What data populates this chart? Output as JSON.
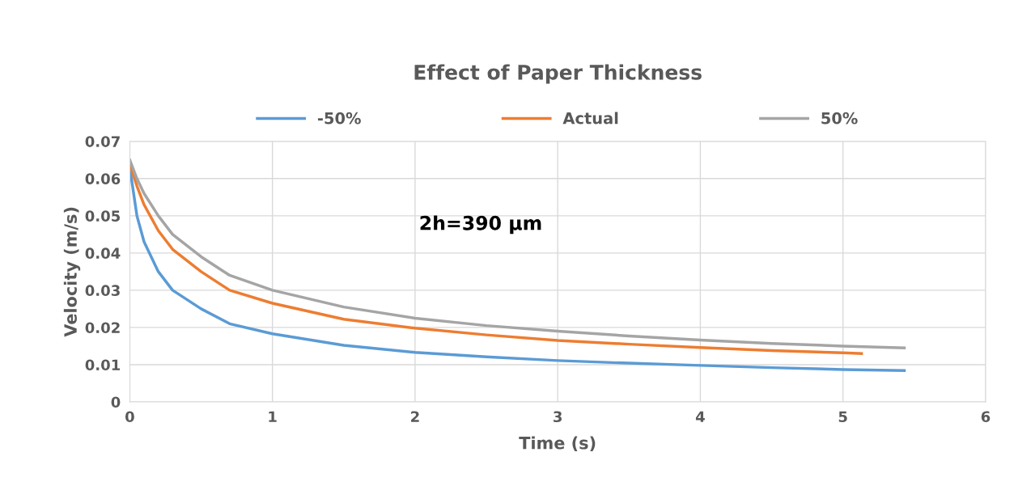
{
  "chart_data": {
    "type": "line",
    "title": "Effect of Paper Thickness",
    "xlabel": "Time (s)",
    "ylabel": "Velocity (m/s)",
    "annotations": [
      "2h=390 µm"
    ],
    "xlim": [
      0,
      6
    ],
    "xticks": [
      0,
      1,
      2,
      3,
      4,
      5,
      6
    ],
    "ylim": [
      0,
      0.07
    ],
    "yticks": [
      0,
      0.01,
      0.02,
      0.03,
      0.04,
      0.05,
      0.06,
      0.07
    ],
    "grid": true,
    "legend": "top",
    "marker": "none",
    "line_style": "solid",
    "series": [
      {
        "name": "-50%",
        "color": "#5b9bd5",
        "x": [
          0,
          0.05,
          0.1,
          0.2,
          0.3,
          0.5,
          0.7,
          1,
          1.5,
          2,
          2.5,
          3,
          3.5,
          4,
          4.5,
          5,
          5.43
        ],
        "values": [
          0.063,
          0.05,
          0.043,
          0.035,
          0.03,
          0.025,
          0.021,
          0.0183,
          0.0152,
          0.0133,
          0.0121,
          0.0111,
          0.0104,
          0.0098,
          0.0092,
          0.0087,
          0.0084
        ]
      },
      {
        "name": "Actual",
        "color": "#ed7d31",
        "x": [
          0,
          0.05,
          0.1,
          0.2,
          0.3,
          0.5,
          0.7,
          1,
          1.5,
          2,
          2.5,
          3,
          3.5,
          4,
          4.5,
          5,
          5.13
        ],
        "values": [
          0.064,
          0.058,
          0.053,
          0.046,
          0.041,
          0.035,
          0.03,
          0.0265,
          0.0222,
          0.0198,
          0.018,
          0.0165,
          0.0155,
          0.0146,
          0.0138,
          0.0132,
          0.013
        ]
      },
      {
        "name": "50%",
        "color": "#a5a5a5",
        "x": [
          0,
          0.05,
          0.1,
          0.2,
          0.3,
          0.5,
          0.7,
          1,
          1.5,
          2,
          2.5,
          3,
          3.5,
          4,
          4.5,
          5,
          5.43
        ],
        "values": [
          0.065,
          0.06,
          0.056,
          0.05,
          0.045,
          0.039,
          0.034,
          0.03,
          0.0255,
          0.0225,
          0.0205,
          0.019,
          0.0177,
          0.0166,
          0.0157,
          0.015,
          0.0145
        ]
      }
    ]
  }
}
